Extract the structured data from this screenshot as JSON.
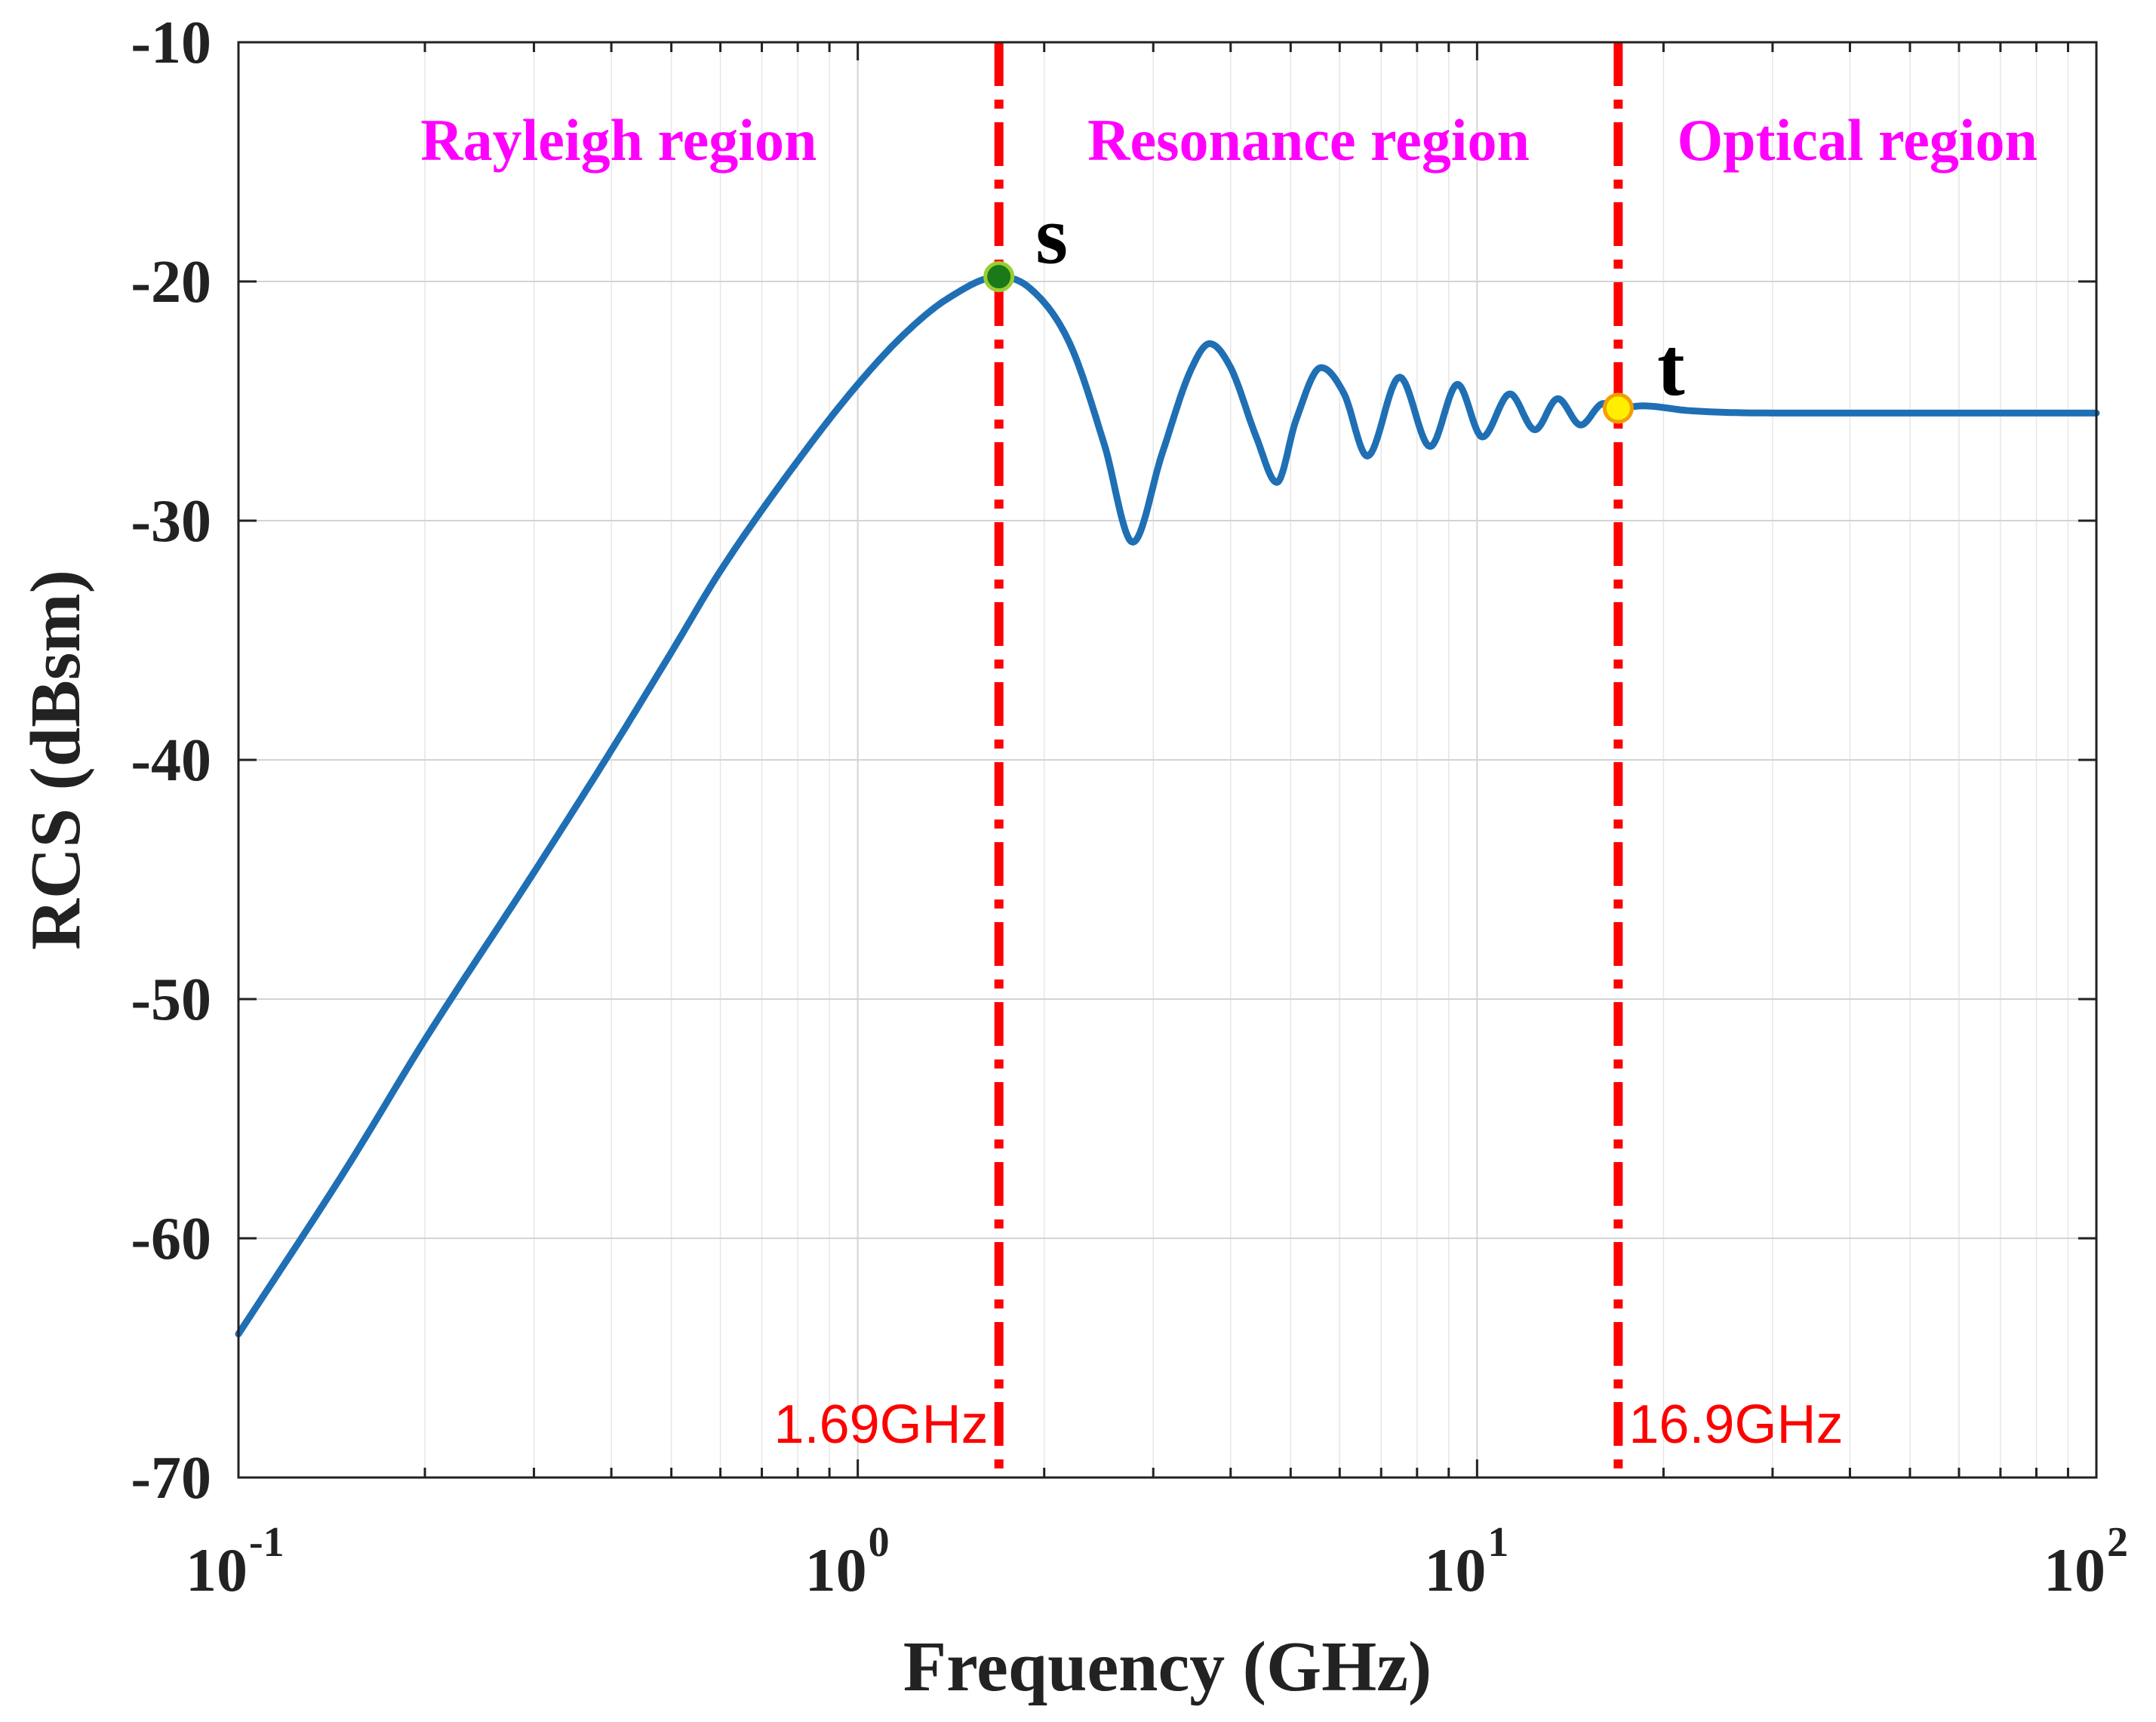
{
  "chart_data": {
    "type": "line",
    "title": "",
    "xlabel": "Frequency (GHz)",
    "ylabel": "RCS (dBsm)",
    "xscale": "log",
    "xlim": [
      0.1,
      100
    ],
    "ylim": [
      -70,
      -10
    ],
    "grid": true,
    "x_ticks": [
      {
        "base": "10",
        "exp": "-1",
        "value": 0.1
      },
      {
        "base": "10",
        "exp": "0",
        "value": 1
      },
      {
        "base": "10",
        "exp": "1",
        "value": 10
      },
      {
        "base": "10",
        "exp": "2",
        "value": 100
      }
    ],
    "y_ticks": [
      {
        "label": "-10",
        "value": -10
      },
      {
        "label": "-20",
        "value": -20
      },
      {
        "label": "-30",
        "value": -30
      },
      {
        "label": "-40",
        "value": -40
      },
      {
        "label": "-50",
        "value": -50
      },
      {
        "label": "-60",
        "value": -60
      },
      {
        "label": "-70",
        "value": -70
      }
    ],
    "series": [
      {
        "name": "RCS",
        "color": "#1f6fb5",
        "points": [
          [
            0.1,
            -64.0
          ],
          [
            0.15,
            -57.0
          ],
          [
            0.2,
            -51.7
          ],
          [
            0.3,
            -44.7
          ],
          [
            0.4,
            -39.6
          ],
          [
            0.5,
            -35.5
          ],
          [
            0.6,
            -32.1
          ],
          [
            0.8,
            -27.5
          ],
          [
            1.0,
            -24.3
          ],
          [
            1.2,
            -22.1
          ],
          [
            1.4,
            -20.7
          ],
          [
            1.69,
            -19.8
          ],
          [
            1.9,
            -20.3
          ],
          [
            2.2,
            -22.6
          ],
          [
            2.5,
            -26.8
          ],
          [
            2.78,
            -30.9
          ],
          [
            3.1,
            -27.2
          ],
          [
            3.45,
            -23.7
          ],
          [
            3.7,
            -22.6
          ],
          [
            4.0,
            -23.6
          ],
          [
            4.4,
            -26.5
          ],
          [
            4.75,
            -28.4
          ],
          [
            5.1,
            -25.8
          ],
          [
            5.6,
            -23.6
          ],
          [
            6.1,
            -24.7
          ],
          [
            6.65,
            -27.3
          ],
          [
            7.5,
            -24.0
          ],
          [
            8.4,
            -26.9
          ],
          [
            9.3,
            -24.3
          ],
          [
            10.2,
            -26.5
          ],
          [
            11.3,
            -24.7
          ],
          [
            12.4,
            -26.2
          ],
          [
            13.5,
            -24.9
          ],
          [
            14.7,
            -26.0
          ],
          [
            16.0,
            -25.1
          ],
          [
            16.9,
            -25.3
          ],
          [
            18.5,
            -25.2
          ],
          [
            22.0,
            -25.4
          ],
          [
            30.0,
            -25.5
          ],
          [
            100.0,
            -25.5
          ]
        ]
      }
    ],
    "vertical_lines": [
      {
        "x": 1.69,
        "label": "1.69GHz",
        "label_side": "left",
        "color": "#ff0000"
      },
      {
        "x": 16.9,
        "label": "16.9GHz",
        "label_side": "right",
        "color": "#ff0000"
      }
    ],
    "markers": [
      {
        "name": "s",
        "label": "s",
        "x": 1.69,
        "y": -19.8,
        "fill": "#1a7a1a",
        "stroke": "#9acd32"
      },
      {
        "name": "t",
        "label": "t",
        "x": 16.9,
        "y": -25.3,
        "fill": "#ffee00",
        "stroke": "#f0a000"
      }
    ],
    "regions": [
      {
        "label": "Rayleigh region",
        "from": 0.1,
        "to": 1.69
      },
      {
        "label": "Resonance region",
        "from": 1.69,
        "to": 16.9
      },
      {
        "label": "Optical region",
        "from": 16.9,
        "to": 100
      }
    ],
    "region_label_color": "#ff00ff"
  }
}
